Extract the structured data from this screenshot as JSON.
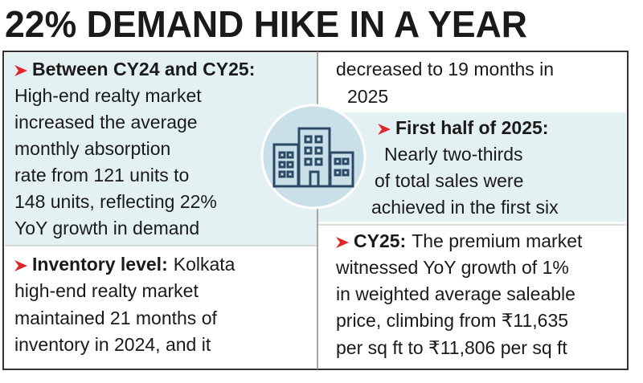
{
  "title": "22% DEMAND HIKE IN A YEAR",
  "sections": [
    {
      "heading": "Between CY24 and CY25:",
      "lines": [
        "High-end realty market",
        "increased the average",
        "monthly absorption",
        "rate from 121 units to",
        "148 units, reflecting 22%",
        "YoY growth in demand"
      ]
    },
    {
      "heading": "Inventory level:",
      "lead": "Kolkata",
      "lines": [
        "high-end realty market",
        "maintained 21 months of",
        "inventory in 2024, and it",
        "decreased to 19 months in",
        "2025"
      ]
    },
    {
      "heading": "First half of 2025:",
      "lines": [
        "Nearly two-thirds",
        "of total sales were",
        "achieved in the first six"
      ]
    },
    {
      "heading": "CY25:",
      "lead": "The premium market",
      "lines": [
        "witnessed YoY growth of 1%",
        "in weighted average saleable",
        "price, climbing from ₹11,635",
        "per sq ft to ₹11,806 per sq ft"
      ]
    }
  ]
}
